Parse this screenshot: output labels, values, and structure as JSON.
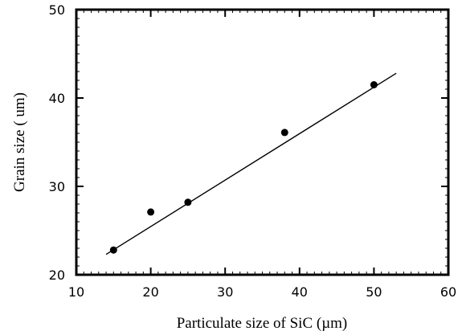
{
  "chart_data": {
    "type": "scatter",
    "title": "",
    "xlabel": "Particulate size of SiC   (µm)",
    "ylabel": "Grain size ( um)",
    "xlim": [
      10,
      60
    ],
    "ylim": [
      20,
      50
    ],
    "xticks": [
      10,
      20,
      30,
      40,
      50,
      60
    ],
    "yticks": [
      20,
      30,
      40,
      50
    ],
    "grid": false,
    "legend": "none",
    "series": [
      {
        "values": [
          {
            "x": 15,
            "y": 22.8
          },
          {
            "x": 20,
            "y": 27.1
          },
          {
            "x": 25,
            "y": 28.2
          },
          {
            "x": 38,
            "y": 36.1
          },
          {
            "x": 50,
            "y": 41.5
          }
        ],
        "marker": "filled-circle",
        "color": "#000000"
      }
    ],
    "fit_line": {
      "x": [
        14,
        53
      ],
      "y": [
        22.3,
        42.8
      ],
      "color": "#000000"
    }
  }
}
